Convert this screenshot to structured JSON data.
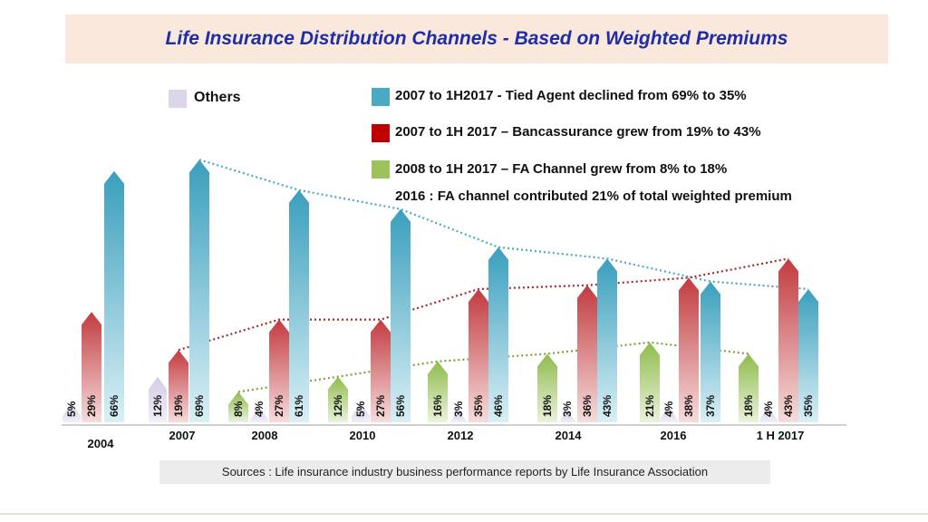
{
  "title": "Life Insurance Distribution Channels - Based on Weighted Premiums",
  "legend": {
    "others": "Others",
    "tied_agent": "2007 to 1H2017 - Tied Agent declined from 69% to 35%",
    "bancassurance": "2007 to 1H 2017 – Bancassurance grew from 19% to 43%",
    "fa_channel": "2008 to 1H 2017 – FA Channel grew from 8% to 18%",
    "fa_note": "2016 : FA channel contributed 21% of total weighted premium"
  },
  "sources": "Sources : Life insurance industry business performance reports by Life Insurance Association",
  "colors": {
    "others": "#ddd6ea",
    "tied_agent": "#4aaac4",
    "bancassurance": "#c23b3f",
    "fa_channel": "#9cc25a",
    "title": "#1d2ea8",
    "title_bg": "#fbe8dc"
  },
  "chart_data": {
    "type": "bar",
    "categories": [
      "2004",
      "2007",
      "2008",
      "2010",
      "2012",
      "2014",
      "2016",
      "1 H 2017"
    ],
    "series": [
      {
        "name": "Others",
        "values": [
          5,
          12,
          4,
          5,
          3,
          3,
          4,
          4
        ]
      },
      {
        "name": "Tied Agent",
        "values": [
          66,
          69,
          61,
          56,
          46,
          43,
          37,
          35
        ]
      },
      {
        "name": "Bancassurance",
        "values": [
          29,
          19,
          27,
          27,
          35,
          36,
          38,
          43
        ]
      },
      {
        "name": "FA Channel",
        "values": [
          null,
          null,
          8,
          12,
          16,
          18,
          21,
          18
        ]
      }
    ]
  }
}
